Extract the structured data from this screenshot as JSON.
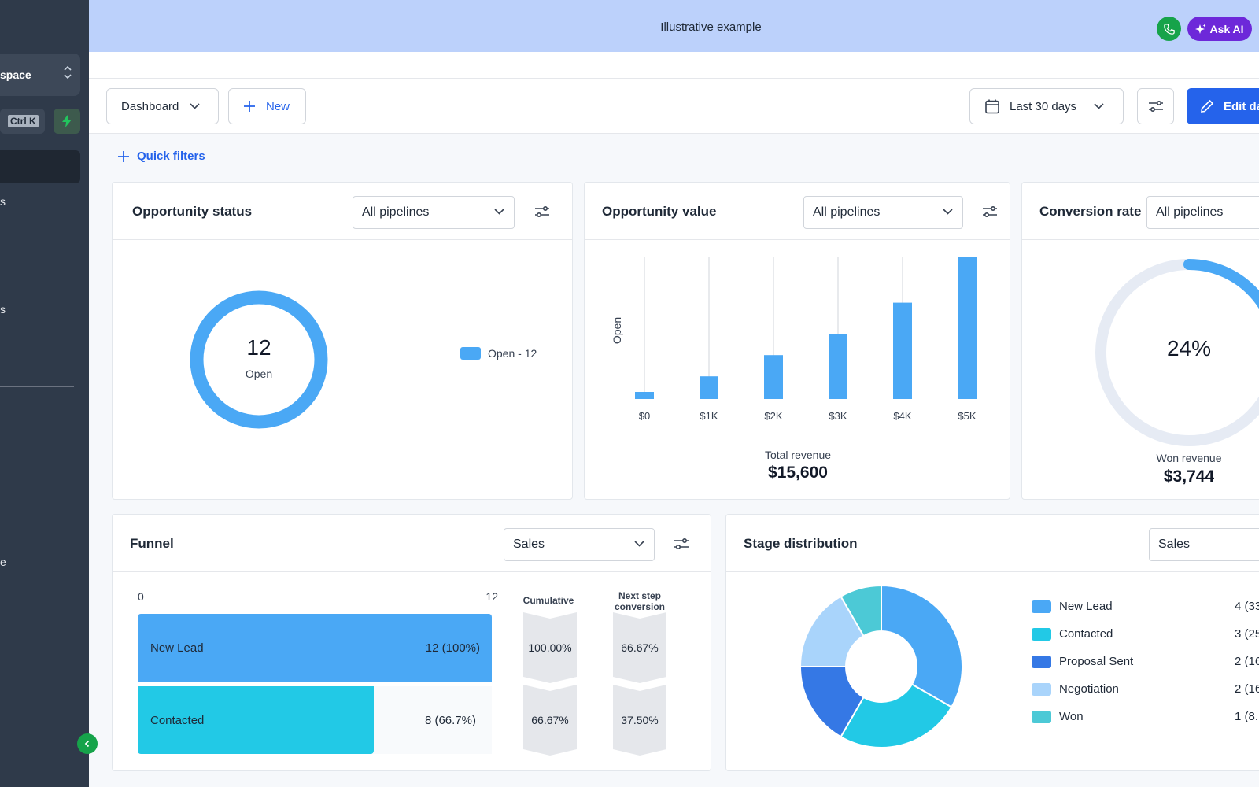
{
  "sidebar": {
    "workspace_label": "space",
    "shortcut": "Ctrl K",
    "fragments": [
      "s",
      "s",
      "e"
    ]
  },
  "topbar": {
    "title": "Illustrative example",
    "ask_ai": "Ask AI"
  },
  "toolbar": {
    "dashboard": "Dashboard",
    "new": "New",
    "date_range": "Last 30 days",
    "edit": "Edit da"
  },
  "quick_filters": "Quick filters",
  "opportunity_status": {
    "title": "Opportunity status",
    "filter": "All pipelines",
    "center_value": "12",
    "center_label": "Open",
    "legend": "Open - 12"
  },
  "opportunity_value": {
    "title": "Opportunity value",
    "filter": "All pipelines",
    "ylabel": "Open",
    "total_label": "Total revenue",
    "total_value": "$15,600"
  },
  "conversion_rate": {
    "title": "Conversion rate",
    "filter": "All pipelines",
    "value": "24%",
    "progress": 0.24,
    "won_label": "Won revenue",
    "won_value": "$3,744"
  },
  "funnel": {
    "title": "Funnel",
    "filter": "Sales",
    "axis_min": "0",
    "axis_max": "12",
    "col_cumulative": "Cumulative",
    "col_next": "Next step conversion",
    "rows": [
      {
        "label": "New Lead",
        "value_text": "12 (100%)",
        "value": 12,
        "cumulative": "100.00%",
        "next": "66.67%",
        "color": "#4aa8f5"
      },
      {
        "label": "Contacted",
        "value_text": "8 (66.7%)",
        "value": 8,
        "cumulative": "66.67%",
        "next": "37.50%",
        "color": "#22c9e6"
      }
    ]
  },
  "stage_distribution": {
    "title": "Stage distribution",
    "filter": "Sales",
    "items": [
      {
        "label": "New Lead",
        "count": "4 (33",
        "color": "#4aa8f5"
      },
      {
        "label": "Contacted",
        "count": "3 (25",
        "color": "#22c9e6"
      },
      {
        "label": "Proposal Sent",
        "count": "2 (16",
        "color": "#3578e5"
      },
      {
        "label": "Negotiation",
        "count": "2 (16",
        "color": "#a9d4fb"
      },
      {
        "label": "Won",
        "count": "1 (8.",
        "color": "#4cc9d6"
      }
    ]
  },
  "chart_data": [
    {
      "type": "pie",
      "title": "Opportunity status",
      "categories": [
        "Open"
      ],
      "values": [
        12
      ]
    },
    {
      "type": "bar",
      "title": "Opportunity value",
      "categories": [
        "$0",
        "$1K",
        "$2K",
        "$3K",
        "$4K",
        "$5K"
      ],
      "values": [
        0.5,
        1.6,
        3.1,
        4.6,
        6.8,
        10
      ],
      "ylabel": "Open",
      "xlabel": ""
    },
    {
      "type": "pie",
      "title": "Stage distribution",
      "categories": [
        "New Lead",
        "Contacted",
        "Proposal Sent",
        "Negotiation",
        "Won"
      ],
      "values": [
        4,
        3,
        2,
        2,
        1
      ]
    }
  ],
  "colors": {
    "accent": "#2563eb",
    "sidebar": "#2f3a4a",
    "topbar": "#bcd1fb",
    "chart_blue": "#4aa8f5"
  }
}
